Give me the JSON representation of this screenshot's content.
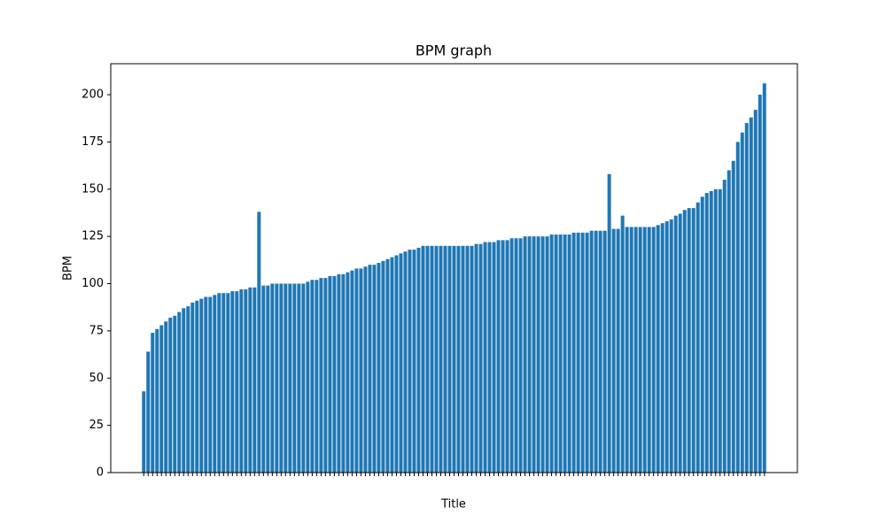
{
  "chart_data": {
    "type": "bar",
    "title": "BPM graph",
    "x_label": "Title",
    "y_label": "BPM",
    "categories": [
      null,
      null,
      null,
      null,
      null,
      null,
      null,
      null,
      null,
      null,
      null,
      null,
      null,
      null,
      null,
      null,
      null,
      null,
      null,
      null,
      null,
      null,
      null,
      null,
      null,
      null,
      null,
      null,
      null,
      null,
      null,
      null,
      null,
      null,
      null,
      null,
      null,
      null,
      null,
      null,
      null,
      null,
      null,
      null,
      null,
      null,
      null,
      null,
      null,
      null,
      null,
      null,
      null,
      null,
      null,
      null,
      null,
      null,
      null,
      null,
      null,
      null,
      null,
      null,
      null,
      null,
      null,
      null,
      null,
      null,
      null,
      null,
      null,
      null,
      null,
      null,
      null,
      null,
      null,
      null,
      null,
      null,
      null,
      null,
      null,
      null,
      null,
      null,
      null,
      null,
      null,
      null,
      null,
      null,
      null,
      null,
      null,
      null,
      null,
      null,
      null,
      null,
      null,
      null,
      null,
      null,
      null,
      null,
      null,
      null,
      null,
      null,
      null,
      null,
      null,
      null,
      null,
      null,
      null,
      null,
      null,
      null,
      null,
      null,
      null,
      null,
      null,
      null,
      null,
      null,
      null,
      null,
      null,
      null,
      null,
      null,
      null,
      null,
      null,
      null,
      null
    ],
    "values": [
      43,
      64,
      74,
      76,
      78,
      80,
      82,
      83,
      85,
      87,
      88,
      90,
      91,
      92,
      93,
      93,
      94,
      95,
      95,
      95,
      96,
      96,
      97,
      97,
      98,
      98,
      138,
      99,
      99,
      100,
      100,
      100,
      100,
      100,
      100,
      100,
      100,
      101,
      102,
      102,
      103,
      103,
      104,
      104,
      105,
      105,
      106,
      107,
      108,
      108,
      109,
      110,
      110,
      111,
      112,
      113,
      114,
      115,
      116,
      117,
      118,
      118,
      119,
      120,
      120,
      120,
      120,
      120,
      120,
      120,
      120,
      120,
      120,
      120,
      120,
      121,
      121,
      122,
      122,
      122,
      123,
      123,
      123,
      124,
      124,
      124,
      125,
      125,
      125,
      125,
      125,
      125,
      126,
      126,
      126,
      126,
      126,
      127,
      127,
      127,
      127,
      128,
      128,
      128,
      128,
      158,
      129,
      129,
      136,
      130,
      130,
      130,
      130,
      130,
      130,
      130,
      131,
      132,
      133,
      134,
      136,
      137,
      139,
      140,
      140,
      143,
      146,
      148,
      149,
      150,
      150,
      155,
      160,
      165,
      175,
      180,
      185,
      188,
      192,
      200,
      206
    ],
    "color": "#1f77b4",
    "ylim": [
      0,
      216.4
    ],
    "yticks": [
      0,
      25,
      50,
      75,
      100,
      125,
      150,
      175,
      200
    ]
  }
}
